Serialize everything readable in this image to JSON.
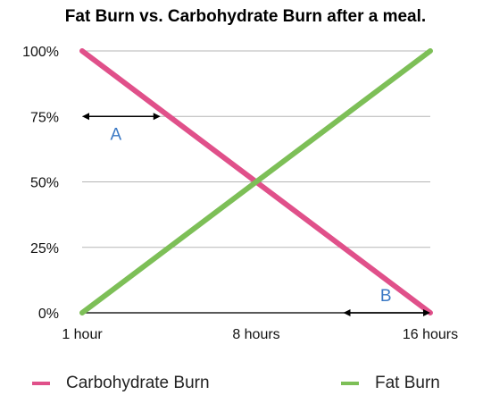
{
  "chart_data": {
    "type": "line",
    "title": "Fat Burn vs. Carbohydrate Burn after a meal.",
    "categories": [
      "1 hour",
      "8 hours",
      "16 hours"
    ],
    "y_ticks": [
      "0%",
      "25%",
      "50%",
      "75%",
      "100%"
    ],
    "ylim": [
      0,
      100
    ],
    "grid": true,
    "legend_placement": "bottom",
    "series": [
      {
        "name": "Carbohydrate Burn",
        "color": "#e0508a",
        "x": [
          0,
          2
        ],
        "values": [
          100,
          0
        ]
      },
      {
        "name": "Fat Burn",
        "color": "#7dbf57",
        "x": [
          0,
          2
        ],
        "values": [
          0,
          100
        ]
      }
    ],
    "annotations": [
      {
        "label": "A",
        "color": "#3a78c4",
        "y": 75,
        "from": 0,
        "to": 0.45
      },
      {
        "label": "B",
        "color": "#3a78c4",
        "y": 0,
        "from": 1.5,
        "to": 2
      }
    ]
  }
}
